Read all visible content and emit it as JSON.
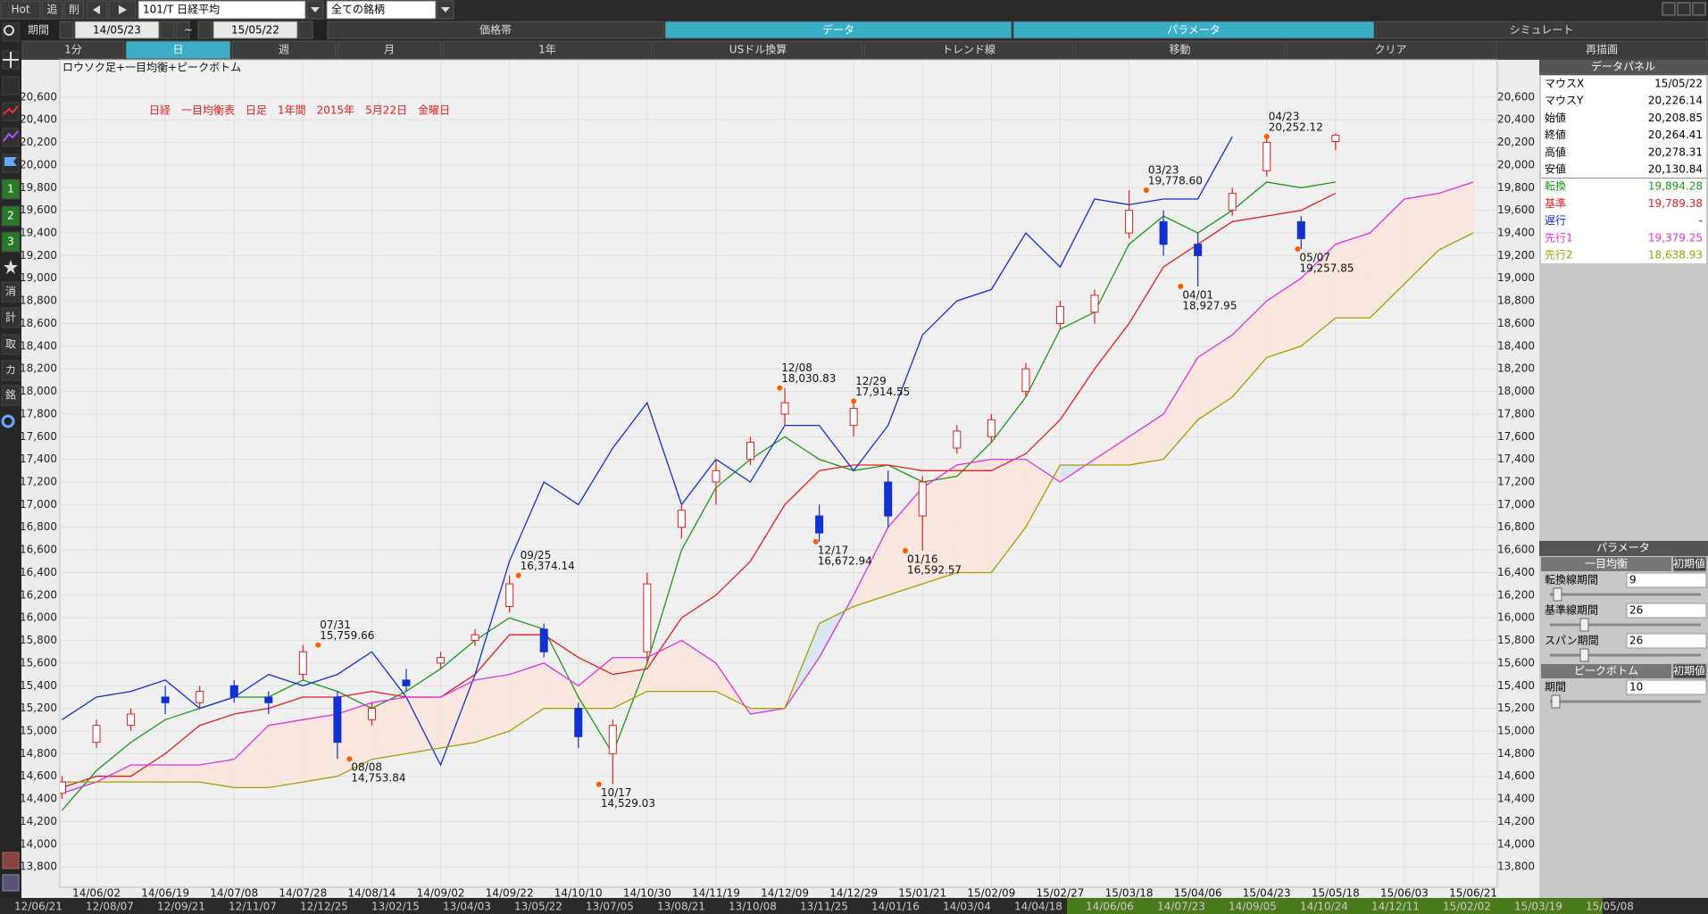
{
  "toolbar": {
    "top": [
      "Hot",
      "追",
      "削"
    ],
    "symbol": "101/T 日経平均",
    "universe": "全ての銘柄",
    "period_label": "期間",
    "from": "14/05/23",
    "sep": "~",
    "to": "15/05/22",
    "tabs": [
      "価格帯",
      "データ",
      "パラメータ",
      "シミュレート"
    ],
    "buttons": [
      "1分",
      "日",
      "週",
      "月",
      "1年",
      "USドル換算",
      "トレンド線",
      "移動",
      "クリア",
      "再描画"
    ],
    "left": [
      "1",
      "2",
      "3",
      "消",
      "計",
      "取",
      "カ",
      "銘"
    ]
  },
  "chart_data": {
    "type": "candlestick",
    "title": "日経　一目均衡表　日足　1年間　2015年　5月22日　金曜日",
    "subtitle": "ロウソク足+一目均衡+ピークボトム",
    "categories": [
      null,
      "14/06/02",
      null,
      "14/06/19",
      null,
      "14/07/08",
      null,
      "14/07/28",
      null,
      "14/08/14",
      null,
      "14/09/02",
      null,
      "14/09/22",
      null,
      "14/10/10",
      null,
      "14/10/30",
      null,
      "14/11/19",
      null,
      "14/12/09",
      null,
      "14/12/29",
      null,
      "15/01/21",
      null,
      "15/02/09",
      null,
      "15/02/27",
      null,
      "15/03/18",
      null,
      "15/04/06",
      null,
      "15/04/23",
      null,
      "15/05/18",
      null,
      "15/06/03",
      null,
      "15/06/21"
    ],
    "open": [
      14450,
      14900,
      15050,
      15300,
      15250,
      15400,
      15300,
      15500,
      15300,
      15100,
      15450,
      15600,
      15800,
      16100,
      15900,
      15200,
      14800,
      15700,
      16800,
      17200,
      17400,
      17800,
      16900,
      17700,
      17200,
      16900,
      17500,
      17600,
      18000,
      18600,
      18700,
      19400,
      19500,
      19300,
      19600,
      19950,
      19500,
      20208.85,
      null,
      null,
      null,
      null
    ],
    "high": [
      14600,
      15100,
      15200,
      15400,
      15400,
      15450,
      15350,
      15760,
      15350,
      15250,
      15550,
      15700,
      15900,
      16374,
      15950,
      15250,
      15100,
      16400,
      17000,
      17400,
      17600,
      18030,
      17000,
      17914,
      17300,
      17250,
      17700,
      17800,
      18250,
      18800,
      18900,
      19778,
      19600,
      19400,
      19800,
      20252,
      19550,
      20278.31,
      null,
      null,
      null,
      null
    ],
    "low": [
      14400,
      14850,
      15000,
      15150,
      15200,
      15250,
      15150,
      15450,
      14754,
      15050,
      15350,
      15550,
      15750,
      16050,
      15650,
      14850,
      14529,
      15600,
      16700,
      17000,
      17350,
      17700,
      16673,
      17600,
      16800,
      16593,
      17450,
      17550,
      17950,
      18550,
      18600,
      19350,
      19200,
      18928,
      19550,
      19900,
      19258,
      20130.84,
      null,
      null,
      null,
      null
    ],
    "close": [
      14550,
      15050,
      15150,
      15250,
      15350,
      15300,
      15250,
      15700,
      14900,
      15200,
      15400,
      15650,
      15850,
      16300,
      15700,
      14950,
      15050,
      16300,
      16950,
      17300,
      17550,
      17900,
      16750,
      17850,
      16900,
      17200,
      17650,
      17750,
      18200,
      18750,
      18850,
      19600,
      19300,
      19200,
      19750,
      20200,
      19350,
      20264.41,
      null,
      null,
      null,
      null
    ],
    "candle_colors": {
      "up": "#e02020",
      "down": "#1030d0"
    },
    "series": [
      {
        "name": "転換",
        "color": "#1a9a1a",
        "values": [
          14300,
          14650,
          14900,
          15100,
          15200,
          15300,
          15300,
          15450,
          15350,
          15200,
          15350,
          15550,
          15800,
          16000,
          15900,
          15300,
          14800,
          15600,
          16600,
          17150,
          17400,
          17600,
          17400,
          17300,
          17350,
          17200,
          17250,
          17550,
          17950,
          18550,
          18700,
          19300,
          19550,
          19400,
          19600,
          19850,
          19800,
          19850,
          null,
          null,
          null,
          null
        ]
      },
      {
        "name": "基準",
        "color": "#e02020",
        "values": [
          14500,
          14600,
          14600,
          14800,
          15050,
          15150,
          15200,
          15300,
          15300,
          15350,
          15300,
          15300,
          15500,
          15850,
          15850,
          15650,
          15500,
          15550,
          16000,
          16200,
          16500,
          17000,
          17300,
          17350,
          17350,
          17300,
          17300,
          17300,
          17450,
          17750,
          18200,
          18600,
          19100,
          19300,
          19500,
          19550,
          19600,
          19750,
          null,
          null,
          null,
          null
        ]
      },
      {
        "name": "遅行",
        "color": "#1030d0",
        "values": [
          15100,
          15300,
          15350,
          15450,
          15200,
          15300,
          15500,
          15400,
          15500,
          15700,
          15300,
          14700,
          15500,
          16500,
          17200,
          17000,
          17500,
          17900,
          17000,
          17400,
          17200,
          17700,
          17700,
          17300,
          17700,
          18500,
          18800,
          18900,
          19400,
          19100,
          19700,
          19650,
          19700,
          19700,
          20250,
          null,
          null,
          null,
          null,
          null,
          null,
          null
        ]
      },
      {
        "name": "先行1",
        "color": "#e030e0",
        "values": [
          14450,
          14550,
          14700,
          14700,
          14700,
          14750,
          15050,
          15100,
          15150,
          15250,
          15300,
          15300,
          15450,
          15500,
          15600,
          15400,
          15650,
          15650,
          15800,
          15600,
          15150,
          15200,
          15650,
          16200,
          16800,
          17150,
          17350,
          17400,
          17400,
          17200,
          17400,
          17600,
          17800,
          18300,
          18500,
          18800,
          19000,
          19300,
          19400,
          19700,
          19750,
          19850
        ]
      },
      {
        "name": "先行2",
        "color": "#a0a000",
        "values": [
          14550,
          14550,
          14550,
          14550,
          14550,
          14500,
          14500,
          14550,
          14600,
          14750,
          14800,
          14850,
          14900,
          15000,
          15200,
          15200,
          15200,
          15350,
          15350,
          15350,
          15200,
          15200,
          15950,
          16100,
          16200,
          16300,
          16400,
          16400,
          16800,
          17350,
          17350,
          17350,
          17400,
          17750,
          17950,
          18300,
          18400,
          18650,
          18650,
          18950,
          19250,
          19400
        ]
      }
    ],
    "cloud_colors": {
      "up": "#f8e6df",
      "down": "#d9e7f5"
    },
    "peaks": [
      {
        "date": "07/31",
        "value": 15759.66,
        "value_label": "15,759.66"
      },
      {
        "date": "08/08",
        "value": 14753.84,
        "value_label": "14,753.84"
      },
      {
        "date": "09/25",
        "value": 16374.14,
        "value_label": "16,374.14"
      },
      {
        "date": "10/17",
        "value": 14529.03,
        "value_label": "14,529.03"
      },
      {
        "date": "12/08",
        "value": 18030.83,
        "value_label": "18,030.83"
      },
      {
        "date": "12/17",
        "value": 16672.94,
        "value_label": "16,672.94"
      },
      {
        "date": "12/29",
        "value": 17914.55,
        "value_label": "17,914.55"
      },
      {
        "date": "01/16",
        "value": 16592.57,
        "value_label": "16,592.57"
      },
      {
        "date": "03/23",
        "value": 19778.6,
        "value_label": "19,778.60"
      },
      {
        "date": "04/01",
        "value": 18927.95,
        "value_label": "18,927.95"
      },
      {
        "date": "04/23",
        "value": 20252.12,
        "value_label": "20,252.12"
      },
      {
        "date": "05/07",
        "value": 19257.85,
        "value_label": "19,257.85"
      }
    ],
    "ylim": [
      13620,
      20930
    ],
    "yticks": [
      {
        "value": 13800,
        "label": "13,800"
      },
      {
        "value": 14000,
        "label": "14,000"
      },
      {
        "value": 14200,
        "label": "14,200"
      },
      {
        "value": 14400,
        "label": "14,400"
      },
      {
        "value": 14600,
        "label": "14,600"
      },
      {
        "value": 14800,
        "label": "14,800"
      },
      {
        "value": 15000,
        "label": "15,000"
      },
      {
        "value": 15200,
        "label": "15,200"
      },
      {
        "value": 15400,
        "label": "15,400"
      },
      {
        "value": 15600,
        "label": "15,600"
      },
      {
        "value": 15800,
        "label": "15,800"
      },
      {
        "value": 16000,
        "label": "16,000"
      },
      {
        "value": 16200,
        "label": "16,200"
      },
      {
        "value": 16400,
        "label": "16,400"
      },
      {
        "value": 16600,
        "label": "16,600"
      },
      {
        "value": 16800,
        "label": "16,800"
      },
      {
        "value": 17000,
        "label": "17,000"
      },
      {
        "value": 17200,
        "label": "17,200"
      },
      {
        "value": 17400,
        "label": "17,400"
      },
      {
        "value": 17600,
        "label": "17,600"
      },
      {
        "value": 17800,
        "label": "17,800"
      },
      {
        "value": 18000,
        "label": "18,000"
      },
      {
        "value": 18200,
        "label": "18,200"
      },
      {
        "value": 18400,
        "label": "18,400"
      },
      {
        "value": 18600,
        "label": "18,600"
      },
      {
        "value": 18800,
        "label": "18,800"
      },
      {
        "value": 19000,
        "label": "19,000"
      },
      {
        "value": 19200,
        "label": "19,200"
      },
      {
        "value": 19400,
        "label": "19,400"
      },
      {
        "value": 19600,
        "label": "19,600"
      },
      {
        "value": 19800,
        "label": "19,800"
      },
      {
        "value": 20000,
        "label": "20,000"
      },
      {
        "value": 20200,
        "label": "20,200"
      },
      {
        "value": 20400,
        "label": "20,400"
      },
      {
        "value": 20600,
        "label": "20,600"
      }
    ],
    "grid": true
  },
  "data_panel": {
    "title": "データパネル",
    "rows": [
      {
        "label": "マウスX",
        "value": "15/05/22"
      },
      {
        "label": "マウスY",
        "value": "20,226.14"
      },
      {
        "label": "始値",
        "value": "20,208.85"
      },
      {
        "label": "終値",
        "value": "20,264.41"
      },
      {
        "label": "高値",
        "value": "20,278.31"
      },
      {
        "label": "安値",
        "value": "20,130.84"
      }
    ],
    "series_values": [
      "19,894.28",
      "19,789.38",
      "-",
      "19,379.25",
      "18,638.93"
    ]
  },
  "parameter_panel": {
    "title": "パラメータ",
    "groups": [
      {
        "title": "一目均衡",
        "reset": "初期値",
        "params": [
          {
            "label": "転換線期間",
            "value": "9"
          },
          {
            "label": "基準線期間",
            "value": "26"
          },
          {
            "label": "スパン期間",
            "value": "26"
          }
        ]
      },
      {
        "title": "ピークボトム",
        "reset": "初期値",
        "params": [
          {
            "label": "期間",
            "value": "10"
          }
        ]
      }
    ]
  },
  "navigator": {
    "labels": [
      "12/06/21",
      "12/08/07",
      "12/09/21",
      "12/11/07",
      "12/12/25",
      "13/02/15",
      "13/04/03",
      "13/05/22",
      "13/07/05",
      "13/08/21",
      "13/10/08",
      "13/11/25",
      "14/01/16",
      "14/03/04",
      "14/04/18",
      "14/06/06",
      "14/07/23",
      "14/09/05",
      "14/10/24",
      "14/12/11",
      "15/02/02",
      "15/03/19",
      "15/05/08"
    ]
  }
}
